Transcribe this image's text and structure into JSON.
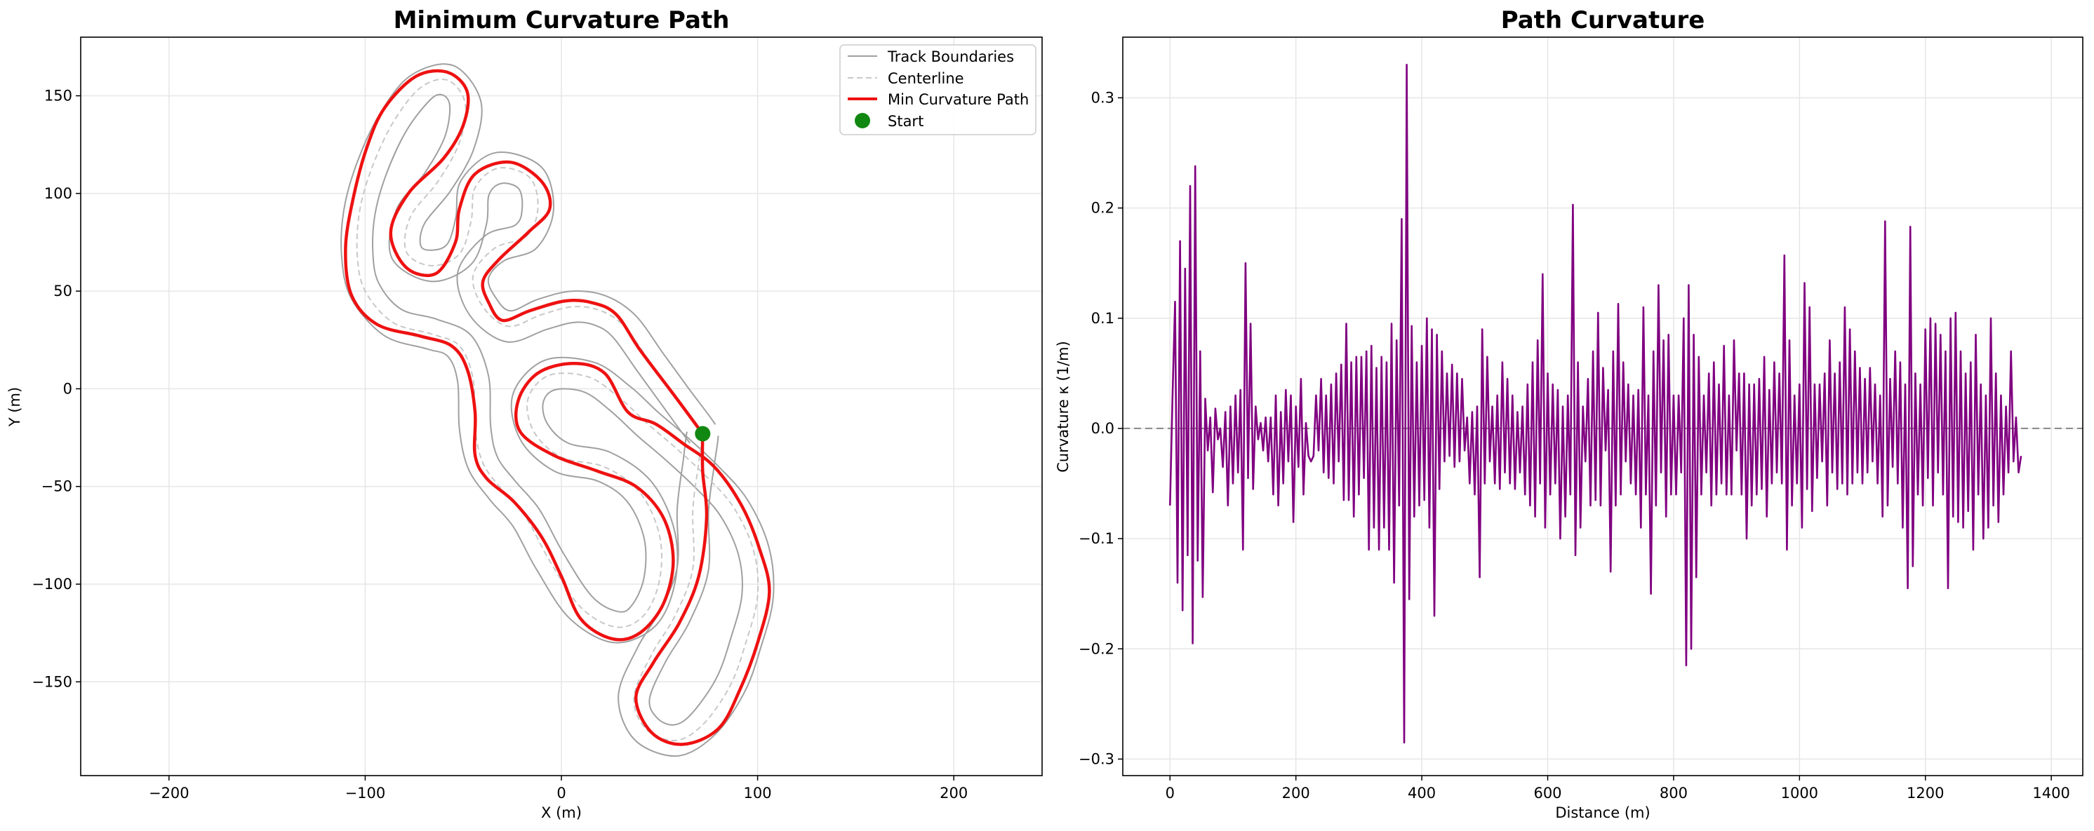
{
  "chart_data": [
    {
      "type": "line",
      "title": "Minimum Curvature Path",
      "xlabel": "X (m)",
      "ylabel": "Y (m)",
      "xlim": [
        -245,
        245
      ],
      "ylim": [
        -198,
        180
      ],
      "xticks": [
        -200,
        -100,
        0,
        100,
        200
      ],
      "yticks": [
        -150,
        -100,
        -50,
        0,
        50,
        100,
        150
      ],
      "xtick_labels": [
        "−200",
        "−100",
        "0",
        "100",
        "200"
      ],
      "ytick_labels": [
        "−150",
        "−100",
        "−50",
        "0",
        "50",
        "100",
        "150"
      ],
      "grid": true,
      "legend_position": "top-right",
      "legend": [
        "Track Boundaries",
        "Centerline",
        "Min Curvature Path",
        "Start"
      ],
      "colors": {
        "boundary": "#a0a0a0",
        "centerline": "#c8c8c8",
        "path": "#ee1111",
        "start": "#118811"
      },
      "track_half_width": 8,
      "centerline": [
        [
          72,
          -23
        ],
        [
          58,
          -4
        ],
        [
          45,
          14
        ],
        [
          32,
          32
        ],
        [
          20,
          40
        ],
        [
          6,
          42
        ],
        [
          -10,
          38
        ],
        [
          -27,
          32
        ],
        [
          -40,
          42
        ],
        [
          -45,
          58
        ],
        [
          -34,
          72
        ],
        [
          -18,
          78
        ],
        [
          -12,
          92
        ],
        [
          -16,
          108
        ],
        [
          -32,
          113
        ],
        [
          -44,
          103
        ],
        [
          -46,
          86
        ],
        [
          -52,
          69
        ],
        [
          -66,
          63
        ],
        [
          -79,
          70
        ],
        [
          -77,
          88
        ],
        [
          -63,
          106
        ],
        [
          -52,
          126
        ],
        [
          -49,
          146
        ],
        [
          -58,
          158
        ],
        [
          -72,
          154
        ],
        [
          -86,
          136
        ],
        [
          -97,
          112
        ],
        [
          -103,
          90
        ],
        [
          -104,
          68
        ],
        [
          -100,
          50
        ],
        [
          -86,
          34
        ],
        [
          -66,
          28
        ],
        [
          -52,
          22
        ],
        [
          -45,
          5
        ],
        [
          -44,
          -20
        ],
        [
          -40,
          -38
        ],
        [
          -30,
          -52
        ],
        [
          -18,
          -66
        ],
        [
          -6,
          -88
        ],
        [
          10,
          -112
        ],
        [
          28,
          -122
        ],
        [
          42,
          -116
        ],
        [
          50,
          -98
        ],
        [
          50,
          -75
        ],
        [
          40,
          -53
        ],
        [
          22,
          -40
        ],
        [
          0,
          -35
        ],
        [
          -14,
          -22
        ],
        [
          -17,
          -5
        ],
        [
          -6,
          7
        ],
        [
          14,
          6
        ],
        [
          30,
          -5
        ],
        [
          44,
          -18
        ],
        [
          58,
          -30
        ],
        [
          74,
          -45
        ],
        [
          88,
          -61
        ],
        [
          98,
          -83
        ],
        [
          100,
          -106
        ],
        [
          94,
          -130
        ],
        [
          86,
          -152
        ],
        [
          72,
          -172
        ],
        [
          58,
          -180
        ],
        [
          43,
          -174
        ],
        [
          37,
          -158
        ],
        [
          46,
          -136
        ],
        [
          58,
          -116
        ],
        [
          67,
          -92
        ],
        [
          67,
          -62
        ],
        [
          70,
          -38
        ],
        [
          72,
          -23
        ]
      ],
      "min_curvature_path": [
        [
          72,
          -23
        ],
        [
          58,
          -4
        ],
        [
          40,
          20
        ],
        [
          28,
          38
        ],
        [
          16,
          44
        ],
        [
          2,
          45
        ],
        [
          -16,
          40
        ],
        [
          -30,
          35
        ],
        [
          -37,
          44
        ],
        [
          -40,
          55
        ],
        [
          -32,
          66
        ],
        [
          -17,
          80
        ],
        [
          -6,
          92
        ],
        [
          -10,
          106
        ],
        [
          -26,
          116
        ],
        [
          -44,
          110
        ],
        [
          -52,
          92
        ],
        [
          -54,
          75
        ],
        [
          -64,
          59
        ],
        [
          -79,
          62
        ],
        [
          -87,
          80
        ],
        [
          -78,
          100
        ],
        [
          -60,
          118
        ],
        [
          -50,
          135
        ],
        [
          -48,
          152
        ],
        [
          -58,
          162
        ],
        [
          -74,
          160
        ],
        [
          -90,
          144
        ],
        [
          -99,
          124
        ],
        [
          -106,
          98
        ],
        [
          -110,
          72
        ],
        [
          -107,
          48
        ],
        [
          -94,
          33
        ],
        [
          -72,
          27
        ],
        [
          -56,
          22
        ],
        [
          -48,
          10
        ],
        [
          -44,
          -12
        ],
        [
          -44,
          -34
        ],
        [
          -38,
          -46
        ],
        [
          -24,
          -58
        ],
        [
          -10,
          -76
        ],
        [
          0,
          -96
        ],
        [
          10,
          -118
        ],
        [
          26,
          -128
        ],
        [
          40,
          -125
        ],
        [
          52,
          -110
        ],
        [
          57,
          -88
        ],
        [
          52,
          -66
        ],
        [
          38,
          -50
        ],
        [
          18,
          -42
        ],
        [
          -4,
          -34
        ],
        [
          -21,
          -22
        ],
        [
          -22,
          -6
        ],
        [
          -12,
          8
        ],
        [
          6,
          13
        ],
        [
          22,
          8
        ],
        [
          34,
          -12
        ],
        [
          48,
          -18
        ],
        [
          62,
          -28
        ],
        [
          78,
          -40
        ],
        [
          92,
          -60
        ],
        [
          101,
          -82
        ],
        [
          106,
          -104
        ],
        [
          100,
          -130
        ],
        [
          91,
          -154
        ],
        [
          80,
          -174
        ],
        [
          62,
          -182
        ],
        [
          46,
          -176
        ],
        [
          38,
          -158
        ],
        [
          47,
          -140
        ],
        [
          60,
          -120
        ],
        [
          70,
          -96
        ],
        [
          74,
          -66
        ],
        [
          72,
          -42
        ],
        [
          72,
          -23
        ]
      ],
      "start": [
        72,
        -23
      ]
    },
    {
      "type": "line",
      "title": "Path Curvature",
      "xlabel": "Distance (m)",
      "ylabel": "Curvature κ (1/m)",
      "xlim": [
        -75,
        1450
      ],
      "ylim": [
        -0.315,
        0.355
      ],
      "xticks": [
        0,
        200,
        400,
        600,
        800,
        1000,
        1200,
        1400
      ],
      "yticks": [
        -0.3,
        -0.2,
        -0.1,
        0.0,
        0.1,
        0.2,
        0.3
      ],
      "xtick_labels": [
        "0",
        "200",
        "400",
        "600",
        "800",
        "1000",
        "1200",
        "1400"
      ],
      "ytick_labels": [
        "−0.3",
        "−0.2",
        "−0.1",
        "0.0",
        "0.1",
        "0.2",
        "0.3"
      ],
      "grid": true,
      "reference_line": 0,
      "colors": {
        "series": "#800080",
        "reference": "#888888"
      },
      "x_start": 0,
      "x_step": 4,
      "curvature": [
        -0.07,
        0.03,
        0.115,
        -0.14,
        0.17,
        -0.165,
        0.145,
        -0.115,
        0.22,
        -0.195,
        0.238,
        -0.12,
        0.07,
        -0.153,
        0.027,
        -0.02,
        0.01,
        -0.058,
        0.018,
        -0.01,
        0.0,
        -0.035,
        0.015,
        -0.07,
        0.02,
        -0.05,
        0.03,
        -0.04,
        0.035,
        -0.11,
        0.15,
        -0.045,
        0.095,
        -0.055,
        0.02,
        -0.01,
        0.005,
        -0.02,
        0.01,
        -0.03,
        0.01,
        -0.06,
        0.03,
        -0.07,
        0.015,
        -0.05,
        0.035,
        -0.03,
        0.03,
        -0.085,
        0.02,
        -0.035,
        0.045,
        -0.06,
        0.005,
        -0.025,
        -0.03,
        -0.025,
        0.03,
        -0.02,
        0.045,
        -0.04,
        0.03,
        -0.045,
        0.04,
        -0.05,
        0.05,
        -0.03,
        0.058,
        -0.065,
        0.095,
        -0.065,
        0.06,
        -0.08,
        0.065,
        -0.06,
        0.065,
        -0.045,
        0.07,
        -0.11,
        0.075,
        -0.09,
        0.055,
        -0.11,
        0.065,
        -0.09,
        0.06,
        -0.11,
        0.095,
        -0.14,
        0.08,
        -0.07,
        0.19,
        -0.285,
        0.33,
        -0.155,
        0.093,
        -0.08,
        0.06,
        -0.07,
        0.075,
        -0.065,
        0.1,
        -0.09,
        0.09,
        -0.17,
        0.085,
        -0.055,
        0.07,
        -0.03,
        0.05,
        -0.025,
        0.058,
        -0.035,
        0.05,
        -0.03,
        0.045,
        -0.02,
        0.01,
        -0.05,
        0.015,
        -0.06,
        0.02,
        -0.135,
        0.09,
        -0.05,
        0.065,
        -0.03,
        0.02,
        -0.05,
        0.03,
        -0.055,
        0.06,
        -0.04,
        0.045,
        -0.05,
        0.03,
        -0.055,
        0.015,
        -0.04,
        0.02,
        -0.06,
        0.04,
        -0.07,
        0.06,
        -0.08,
        0.08,
        -0.05,
        0.14,
        -0.09,
        0.05,
        -0.06,
        0.04,
        -0.05,
        0.035,
        -0.1,
        0.02,
        -0.08,
        0.03,
        -0.06,
        0.203,
        -0.115,
        0.06,
        -0.09,
        0.02,
        -0.03,
        0.045,
        -0.07,
        0.07,
        -0.065,
        0.105,
        -0.07,
        0.055,
        -0.02,
        0.035,
        -0.13,
        0.07,
        -0.07,
        0.113,
        -0.06,
        0.06,
        -0.03,
        0.04,
        -0.05,
        0.03,
        -0.06,
        0.035,
        -0.09,
        0.11,
        -0.06,
        0.03,
        -0.15,
        0.07,
        -0.07,
        0.13,
        -0.04,
        0.08,
        -0.08,
        0.085,
        -0.06,
        0.03,
        -0.06,
        0.03,
        -0.04,
        0.1,
        -0.215,
        0.13,
        -0.2,
        0.085,
        -0.135,
        0.065,
        -0.06,
        0.03,
        -0.04,
        0.05,
        -0.07,
        0.06,
        -0.06,
        0.04,
        -0.05,
        0.075,
        -0.06,
        0.03,
        -0.06,
        0.08,
        -0.02,
        0.05,
        -0.06,
        0.05,
        -0.1,
        0.04,
        -0.07,
        0.04,
        -0.06,
        0.045,
        -0.055,
        0.065,
        -0.08,
        0.035,
        -0.05,
        0.06,
        -0.04,
        0.05,
        -0.05,
        0.157,
        -0.11,
        0.08,
        -0.07,
        0.03,
        -0.05,
        0.04,
        -0.09,
        0.132,
        -0.055,
        0.11,
        -0.075,
        0.04,
        -0.045,
        0.04,
        -0.03,
        0.05,
        -0.07,
        0.08,
        -0.04,
        0.05,
        -0.055,
        0.06,
        -0.05,
        0.11,
        -0.06,
        0.09,
        -0.05,
        0.07,
        -0.04,
        0.055,
        -0.05,
        0.045,
        -0.04,
        0.055,
        -0.03,
        0.04,
        -0.05,
        0.03,
        -0.08,
        0.188,
        -0.07,
        0.045,
        -0.035,
        0.07,
        -0.05,
        0.06,
        -0.09,
        0.04,
        -0.145,
        0.183,
        -0.125,
        0.05,
        -0.06,
        0.04,
        -0.07,
        0.09,
        -0.045,
        0.1,
        -0.07,
        0.095,
        -0.04,
        0.085,
        -0.06,
        0.07,
        -0.145,
        0.1,
        -0.08,
        0.105,
        -0.085,
        0.07,
        -0.09,
        0.05,
        -0.075,
        0.06,
        -0.11,
        0.085,
        -0.06,
        0.04,
        -0.1,
        0.03,
        -0.09,
        0.1,
        -0.07,
        0.05,
        -0.085,
        0.03,
        -0.06,
        0.02,
        -0.04,
        0.07,
        -0.03,
        0.01,
        -0.04,
        -0.025
      ]
    }
  ]
}
